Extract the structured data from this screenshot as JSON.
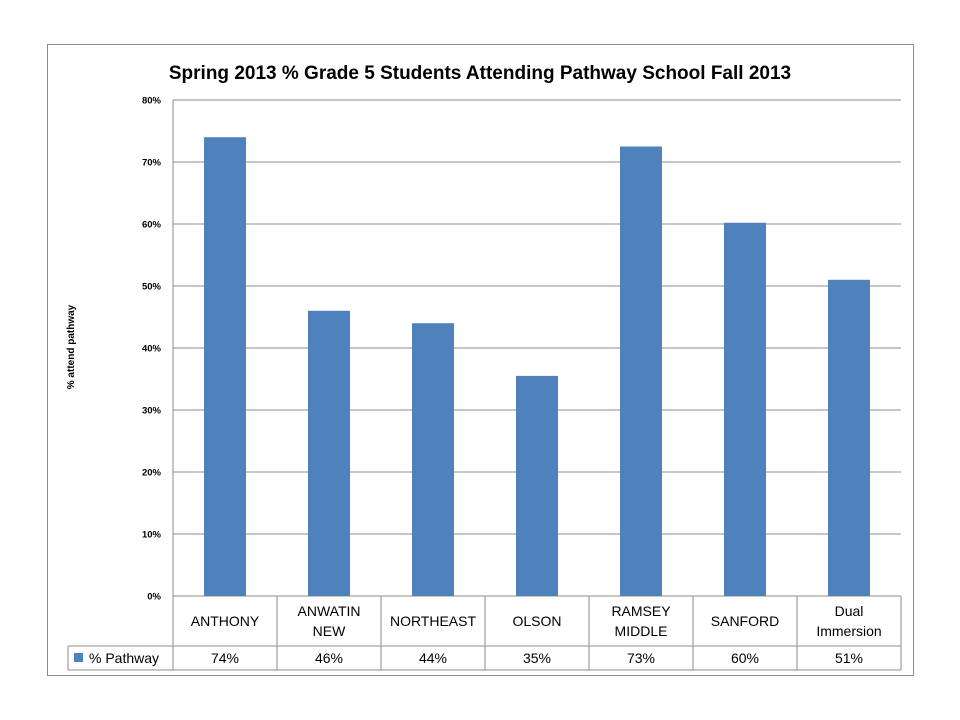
{
  "chart_data": {
    "type": "bar",
    "title": "Spring 2013 % Grade 5 Students Attending Pathway School Fall 2013",
    "ylabel": "% attend pathway",
    "xlabel": "",
    "ylim": [
      0,
      0.8
    ],
    "ytick_step": 0.1,
    "yticks": [
      "0%",
      "10%",
      "20%",
      "30%",
      "40%",
      "50%",
      "60%",
      "70%",
      "80%"
    ],
    "grid": true,
    "categories": [
      [
        "ANTHONY"
      ],
      [
        "ANWATIN",
        "NEW"
      ],
      [
        "NORTHEAST"
      ],
      [
        "OLSON"
      ],
      [
        "RAMSEY",
        "MIDDLE"
      ],
      [
        "SANFORD"
      ],
      [
        "Dual",
        "Immersion"
      ]
    ],
    "series": [
      {
        "name": "% Pathway",
        "color": "#4f81bd",
        "values": [
          0.74,
          0.46,
          0.44,
          0.355,
          0.725,
          0.602,
          0.51
        ],
        "labels": [
          "74%",
          "46%",
          "44%",
          "35%",
          "73%",
          "60%",
          "51%"
        ]
      }
    ],
    "legend": "data-table"
  }
}
